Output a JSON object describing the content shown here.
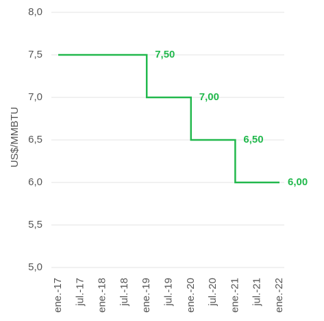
{
  "chart_data": {
    "type": "line",
    "y_label": "US$/MMBTU",
    "categories": [
      "ene.-17",
      "jul.-17",
      "ene.-18",
      "jul.-18",
      "ene.-19",
      "jul.-19",
      "ene.-20",
      "jul.-20",
      "ene.-21",
      "jul.-21",
      "ene.-22"
    ],
    "series": [
      {
        "name": null,
        "color": "#21b84c",
        "values": [
          7.5,
          7.5,
          7.5,
          7.5,
          7.0,
          7.0,
          6.5,
          6.5,
          6.0,
          6.0,
          6.0
        ],
        "value_labels": [
          null,
          null,
          null,
          "7,50",
          null,
          "7,00",
          null,
          "6,50",
          null,
          null,
          "6,00"
        ]
      }
    ],
    "ylim": [
      5.0,
      8.0
    ],
    "yticks": [
      {
        "value": 5.0,
        "label": "5,0"
      },
      {
        "value": 5.5,
        "label": "5,5"
      },
      {
        "value": 6.0,
        "label": "6,0"
      },
      {
        "value": 6.5,
        "label": "6,5"
      },
      {
        "value": 7.0,
        "label": "7,0"
      },
      {
        "value": 7.5,
        "label": "7,5"
      },
      {
        "value": 8.0,
        "label": "8,0"
      }
    ],
    "grid": true,
    "step": true
  }
}
